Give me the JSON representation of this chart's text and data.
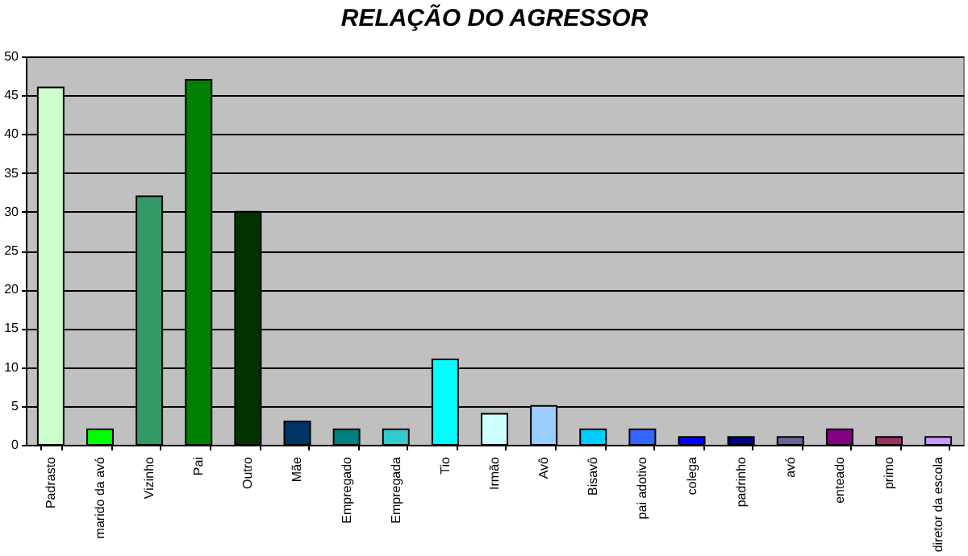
{
  "chart_data": {
    "type": "bar",
    "title": "RELAÇÃO DO AGRESSOR",
    "categories": [
      "Padrasto",
      "marido da avó",
      "Vizinho",
      "Pai",
      "Outro",
      "Mãe",
      "Empregado",
      "Empregada",
      "Tio",
      "Irmão",
      "Avô",
      "Bisavô",
      "pai adotivo",
      "colega",
      "padrinho",
      "avó",
      "enteado",
      "primo",
      "diretor da escola"
    ],
    "values": [
      46,
      2,
      32,
      47,
      30,
      3,
      2,
      2,
      11,
      4,
      5,
      2,
      2,
      1,
      1,
      1,
      2,
      1,
      1
    ],
    "colors": [
      "#ccffcc",
      "#00ff00",
      "#339966",
      "#008000",
      "#003300",
      "#003366",
      "#008080",
      "#33cccc",
      "#00ffff",
      "#ccffff",
      "#99ccff",
      "#00ccff",
      "#3366ff",
      "#0000ff",
      "#000080",
      "#666699",
      "#800080",
      "#993366",
      "#cc99ff"
    ],
    "ylim": [
      0,
      50
    ],
    "yticks": [
      0,
      5,
      10,
      15,
      20,
      25,
      30,
      35,
      40,
      45,
      50
    ],
    "grid": "y"
  }
}
